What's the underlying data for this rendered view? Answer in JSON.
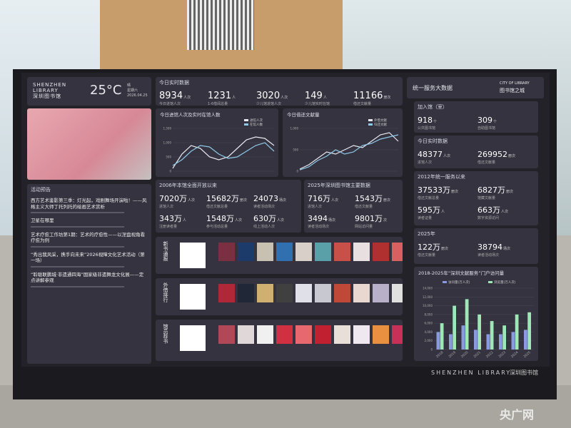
{
  "header": {
    "name_en_1": "SHENZHEN",
    "name_en_2": "LIBRARY",
    "name_cn": "深圳图书馆",
    "temperature": "25°C",
    "weather": "晴",
    "weekday": "星期六",
    "date": "2026.04.25"
  },
  "realtime": {
    "title": "今日实时数据",
    "items": [
      {
        "value": "8934",
        "unit": "人次",
        "label": "今日进馆人次"
      },
      {
        "value": "1231",
        "unit": "人",
        "label": "1-6借阅总量"
      },
      {
        "value": "3020",
        "unit": "人次",
        "label": "少儿馆进馆人次"
      },
      {
        "value": "149",
        "unit": "人",
        "label": "少儿馆实时在馆"
      },
      {
        "value": "11166",
        "unit": "册次",
        "label": "借还文献量"
      }
    ]
  },
  "brand": {
    "title": "统一服务大数据",
    "en": "CITY OF LIBRARY",
    "cn": "图书馆之城"
  },
  "activities": {
    "title": "活动预告",
    "items": [
      "西方艺术鉴影第三季：灯光起，戏剧舞场开演啦！——风格主义大师丁托列托的绘画艺术赏析",
      "卫星在哪里",
      "艺术疗愈工作坊第1期：艺术的疗愈性——以涅盘视角看疗愈为例",
      "“秀出我风采，携手向未来”2026视障文化艺术活动（第一场）",
      "“聆聪联鹏城·非遗通四海”国家级非遗舞龙文化展——定点讲解参观"
    ]
  },
  "since_2006": {
    "title": "2006年本馆全面开放以来",
    "items": [
      {
        "value": "7020万",
        "unit": "人次",
        "label": "进馆人次"
      },
      {
        "value": "15682万",
        "unit": "册次",
        "label": "借还文献总量"
      },
      {
        "value": "24073",
        "unit": "场次",
        "label": "读者活动场次"
      },
      {
        "value": "343万",
        "unit": "人",
        "label": "注册读者量"
      },
      {
        "value": "1548万",
        "unit": "人次",
        "label": "参与活动总量"
      },
      {
        "value": "630万",
        "unit": "人次",
        "label": "线上活动人次"
      }
    ]
  },
  "main_2025": {
    "title": "2025年深圳图书馆主要数据",
    "items": [
      {
        "value": "716万",
        "unit": "人次",
        "label": "进馆人次"
      },
      {
        "value": "1543万",
        "unit": "册次",
        "label": "借还文献量"
      },
      {
        "value": "3494",
        "unit": "场次",
        "label": "读者活动场次"
      },
      {
        "value": "9801万",
        "unit": "次",
        "label": "网站访问量"
      }
    ]
  },
  "book_rows": [
    "新书通报",
    "外借排行",
    "馆员荐书"
  ],
  "members": {
    "title": "加入馆（室）",
    "items": [
      {
        "value": "918",
        "unit": "个",
        "label": "公共图书馆"
      },
      {
        "value": "309",
        "unit": "个",
        "label": "自助图书馆"
      }
    ]
  },
  "today_network": {
    "title": "今日实时数据",
    "items": [
      {
        "value": "48377",
        "unit": "人次",
        "label": "进馆人次"
      },
      {
        "value": "269952",
        "unit": "册次",
        "label": "借还文献量"
      }
    ]
  },
  "since_2012": {
    "title": "2012年统一服务以来",
    "items": [
      {
        "value": "37533万",
        "unit": "册次",
        "label": "借还文献总量"
      },
      {
        "value": "6827万",
        "unit": "册次",
        "label": "馆藏文献量"
      },
      {
        "value": "595万",
        "unit": "人",
        "label": "读者证量"
      },
      {
        "value": "663万",
        "unit": "人次",
        "label": "数字资源访问"
      }
    ]
  },
  "year_2025": {
    "title": "2025年",
    "items": [
      {
        "value": "122万",
        "unit": "册次",
        "label": "借还文献量"
      },
      {
        "value": "38794",
        "unit": "场次",
        "label": "读者活动场次"
      }
    ]
  },
  "chart_data": [
    {
      "type": "line",
      "title": "今日进馆人次及实时在馆人数",
      "categories": [
        null,
        null,
        null,
        null,
        null,
        null,
        null,
        null,
        null,
        null,
        null,
        null
      ],
      "series": [
        {
          "name": "进馆人次",
          "color": "#e8e8f0",
          "values": [
            100,
            600,
            900,
            800,
            500,
            400,
            500,
            800,
            1100,
            1200,
            1150,
            900
          ]
        },
        {
          "name": "在馆人数",
          "color": "#8ec8e8",
          "values": [
            200,
            400,
            700,
            900,
            850,
            600,
            450,
            500,
            700,
            900,
            1000,
            700
          ]
        }
      ],
      "ylim": [
        0,
        1500
      ],
      "yticks": [
        0,
        500,
        {
          "value": 1000,
          "label": "1,000"
        },
        {
          "value": 1500,
          "label": "1,500"
        }
      ]
    },
    {
      "type": "line",
      "title": "今日借还文献量",
      "categories": [
        null,
        null,
        null,
        null,
        null,
        null,
        null,
        null,
        null,
        null,
        null,
        null
      ],
      "series": [
        {
          "name": "外借文献",
          "color": "#e8e8f0",
          "values": [
            50,
            150,
            300,
            450,
            400,
            500,
            600,
            550,
            700,
            850,
            900,
            700
          ]
        },
        {
          "name": "归还文献",
          "color": "#8ec8e8",
          "values": [
            30,
            100,
            250,
            350,
            500,
            400,
            450,
            600,
            650,
            750,
            800,
            850
          ]
        }
      ],
      "ylim": [
        0,
        1000
      ],
      "yticks": [
        0,
        500,
        {
          "value": 1000,
          "label": "1,000"
        }
      ]
    },
    {
      "type": "bar",
      "title": "2018-2025年“深圳文献服务”门户访问量",
      "categories": [
        "2018",
        "2019",
        "2020",
        "2021",
        "2022",
        "2023",
        "2024",
        "2025"
      ],
      "series": [
        {
          "name": "访问量(万人次)",
          "color": "#8a9ae0",
          "values": [
            4000,
            3500,
            5500,
            4500,
            3500,
            3500,
            4000,
            4500
          ]
        },
        {
          "name": "浏览量(万人次)",
          "color": "#9ee8b8",
          "values": [
            6000,
            10000,
            11500,
            8000,
            6500,
            5500,
            8000,
            8500
          ]
        }
      ],
      "ylim": [
        0,
        14000
      ],
      "yticks": [
        0,
        {
          "value": 2000,
          "label": "2,000"
        },
        {
          "value": 4000,
          "label": "4,000"
        },
        {
          "value": 6000,
          "label": "6,000"
        },
        {
          "value": 8000,
          "label": "8,000"
        },
        {
          "value": 10000,
          "label": "10,000"
        },
        {
          "value": 12000,
          "label": "12,000"
        },
        {
          "value": 14000,
          "label": "14,000"
        }
      ]
    }
  ],
  "footer": {
    "en": "SHENZHEN LIBRARY",
    "cn": "深圳图书馆"
  },
  "watermark": "央广网"
}
